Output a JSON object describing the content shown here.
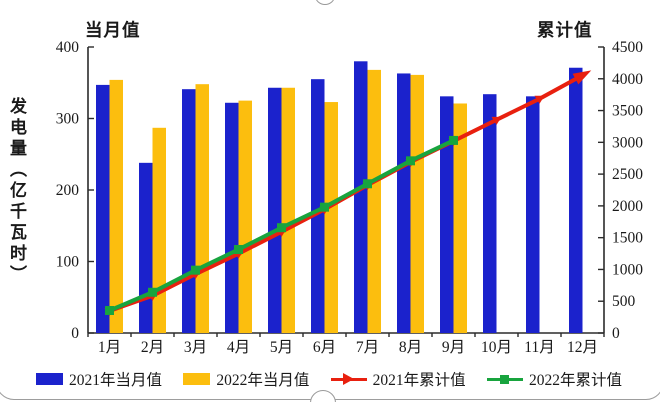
{
  "page": {
    "left_axis_header": "当月值",
    "right_axis_header": "累计值",
    "y_axis_title": "发电量（亿千瓦时）"
  },
  "chart_data": {
    "type": "combo",
    "title": "",
    "categories": [
      "1月",
      "2月",
      "3月",
      "4月",
      "5月",
      "6月",
      "7月",
      "8月",
      "9月",
      "10月",
      "11月",
      "12月"
    ],
    "series": [
      {
        "name": "2021年当月值",
        "type": "bar",
        "axis": "left",
        "color": "#1b22cc",
        "marker": "none",
        "values": [
          347,
          238,
          341,
          322,
          343,
          355,
          380,
          363,
          331,
          334,
          331,
          371
        ]
      },
      {
        "name": "2022年当月值",
        "type": "bar",
        "axis": "left",
        "color": "#fcbe0e",
        "marker": "none",
        "values": [
          354,
          287,
          348,
          325,
          343,
          323,
          368,
          361,
          321,
          null,
          null,
          null
        ]
      },
      {
        "name": "2021年累计值",
        "type": "line",
        "axis": "right",
        "color": "#e8200f",
        "marker": "triangle",
        "arrow_end": true,
        "values": [
          347,
          585,
          926,
          1248,
          1591,
          1946,
          2326,
          2689,
          3020,
          3354,
          3685,
          4056
        ]
      },
      {
        "name": "2022年累计值",
        "type": "line",
        "axis": "right",
        "color": "#18a43e",
        "marker": "square",
        "arrow_end": false,
        "values": [
          354,
          641,
          989,
          1314,
          1657,
          1980,
          2348,
          2709,
          3030,
          null,
          null,
          null
        ]
      }
    ],
    "left_axis": {
      "label": "当月值",
      "min": 0,
      "max": 400,
      "step": 100,
      "ticks": [
        "0",
        "100",
        "200",
        "300",
        "400"
      ]
    },
    "right_axis": {
      "label": "累计值",
      "min": 0,
      "max": 4500,
      "step": 500,
      "ticks": [
        "0",
        "500",
        "1000",
        "1500",
        "2000",
        "2500",
        "3000",
        "3500",
        "4000",
        "4500"
      ]
    },
    "ylabel": "发电量（亿千瓦时）",
    "grid": false,
    "legend_position": "bottom"
  }
}
